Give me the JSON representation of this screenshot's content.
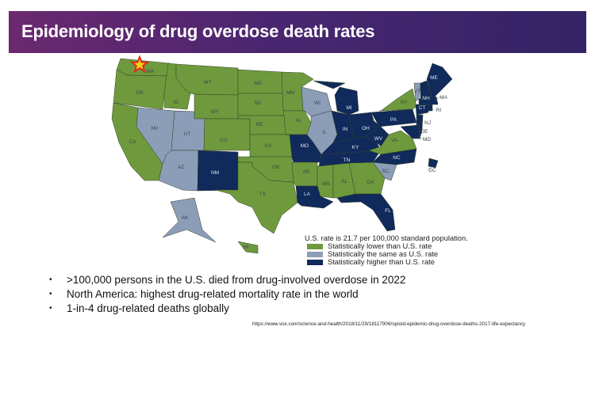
{
  "title": "Epidemiology of drug overdose death rates",
  "colors": {
    "lower": "#6e9a3d",
    "same": "#8c9db8",
    "higher": "#102a5c",
    "header_start": "#6b2870",
    "header_end": "#332466"
  },
  "map": {
    "marker_icon": "star-icon",
    "states": {
      "WA": "lower",
      "OR": "lower",
      "CA": "lower",
      "NV": "same",
      "ID": "lower",
      "MT": "lower",
      "WY": "lower",
      "UT": "same",
      "CO": "lower",
      "AZ": "same",
      "NM": "higher",
      "ND": "lower",
      "SD": "lower",
      "NE": "lower",
      "KS": "lower",
      "OK": "lower",
      "TX": "lower",
      "MN": "lower",
      "IA": "lower",
      "MO": "higher",
      "AR": "lower",
      "LA": "higher",
      "MS": "lower",
      "AL": "lower",
      "GA": "lower",
      "FL": "higher",
      "SC": "same",
      "NC": "higher",
      "TN": "higher",
      "KY": "higher",
      "WI": "same",
      "IL": "same",
      "IN": "higher",
      "OH": "higher",
      "MI": "higher",
      "WV": "higher",
      "VA": "lower",
      "PA": "higher",
      "NY": "lower",
      "VT": "same",
      "NH": "higher",
      "ME": "higher",
      "MA": "higher",
      "CT": "higher",
      "RI": "higher",
      "NJ": "higher",
      "DE": "higher",
      "MD": "higher",
      "DC": "higher",
      "AK": "same",
      "HI": "lower"
    }
  },
  "legend": {
    "note": "U.S. rate is 21.7 per 100,000 standard population.",
    "items": [
      {
        "key": "lower",
        "label": "Statistically lower than U.S. rate"
      },
      {
        "key": "same",
        "label": "Statistically the same as U.S. rate"
      },
      {
        "key": "higher",
        "label": "Statistically higher than U.S. rate"
      }
    ]
  },
  "bullets": [
    ">100,000 persons in the U.S. died from drug-involved overdose in 2022",
    "North America: highest drug-related mortality rate in the world",
    "1-in-4 drug-related deaths globally"
  ],
  "source": "https://www.vox.com/science-and-health/2018/11/29/18117906/opioid-epidemic-drug-overdose-deaths-2017-life-expectancy"
}
